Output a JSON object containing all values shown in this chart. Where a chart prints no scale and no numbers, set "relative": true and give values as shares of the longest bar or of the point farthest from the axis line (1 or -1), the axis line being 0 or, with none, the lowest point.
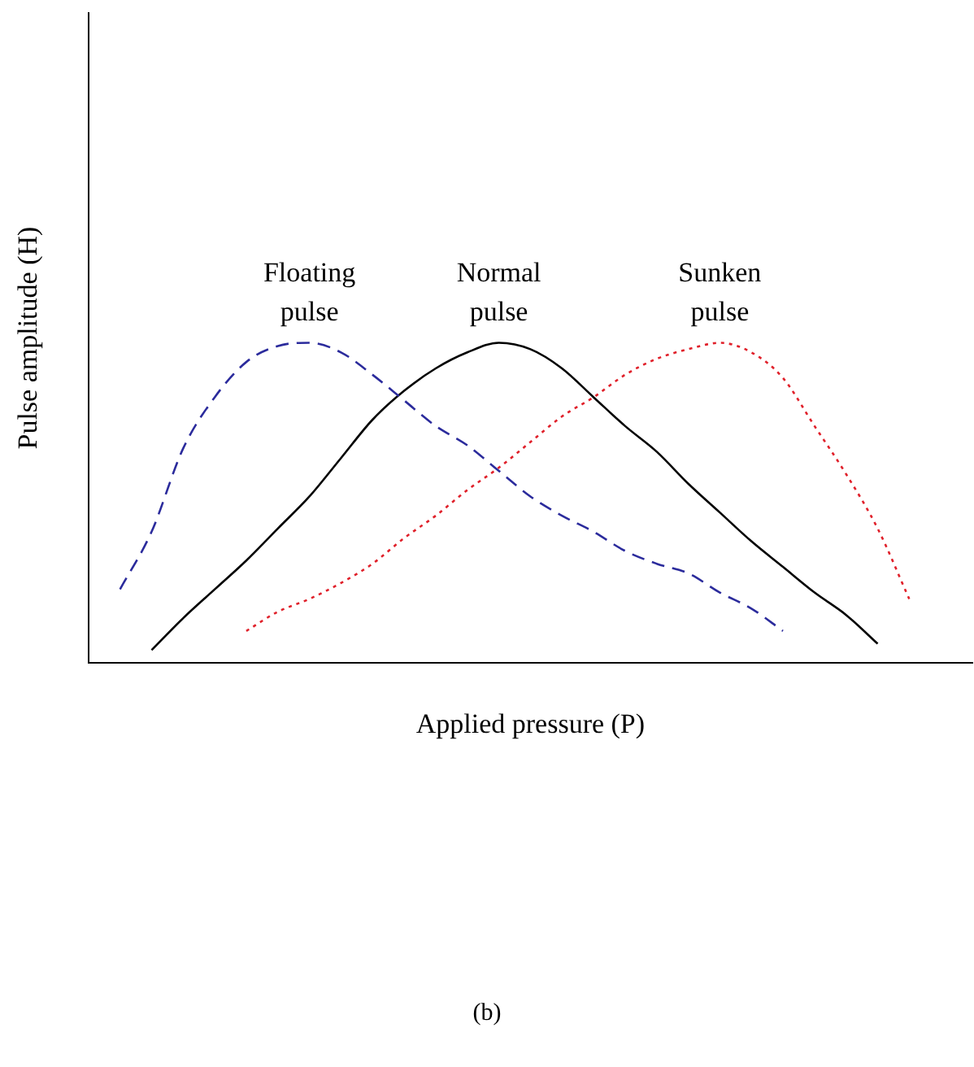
{
  "chart_data": {
    "type": "line",
    "relative": true,
    "xlabel": "Applied pressure (P)",
    "ylabel": "Pulse amplitude (H)",
    "legend": false,
    "marker": "none",
    "grid": false,
    "tick_labels": false,
    "categories": [
      null,
      null,
      null,
      null,
      null,
      null,
      null,
      null,
      null,
      null,
      null,
      null,
      null,
      null,
      null,
      null,
      null,
      null,
      null,
      null,
      null,
      null,
      null,
      null,
      null,
      null,
      null,
      null,
      null
    ],
    "series": [
      {
        "name": "Floating pulse",
        "color": "#2b2b9c",
        "line_style": "dashed",
        "values": [
          null,
          0.23,
          0.41,
          0.67,
          0.83,
          0.94,
          0.99,
          1.0,
          0.97,
          0.9,
          0.82,
          0.74,
          0.68,
          0.6,
          0.52,
          0.46,
          0.41,
          0.35,
          0.31,
          0.28,
          0.22,
          0.17,
          0.1,
          null,
          null,
          null,
          null,
          null,
          null
        ]
      },
      {
        "name": "Normal pulse",
        "color": "#000000",
        "line_style": "solid",
        "values": [
          null,
          null,
          0.04,
          0.14,
          0.23,
          0.32,
          0.42,
          0.52,
          0.64,
          0.76,
          0.85,
          0.92,
          0.97,
          1.0,
          0.98,
          0.92,
          0.83,
          0.74,
          0.66,
          0.56,
          0.47,
          0.38,
          0.3,
          0.22,
          0.15,
          0.06,
          null,
          null,
          null
        ]
      },
      {
        "name": "Sunken pulse",
        "color": "#e0202a",
        "line_style": "dotted",
        "values": [
          null,
          null,
          null,
          null,
          null,
          0.1,
          0.16,
          0.2,
          0.25,
          0.31,
          0.39,
          0.46,
          0.54,
          0.61,
          0.69,
          0.77,
          0.83,
          0.9,
          0.95,
          0.98,
          1.0,
          0.97,
          0.89,
          0.74,
          0.59,
          0.42,
          0.2,
          null,
          null
        ]
      }
    ],
    "annotations": [
      "(b)"
    ]
  }
}
